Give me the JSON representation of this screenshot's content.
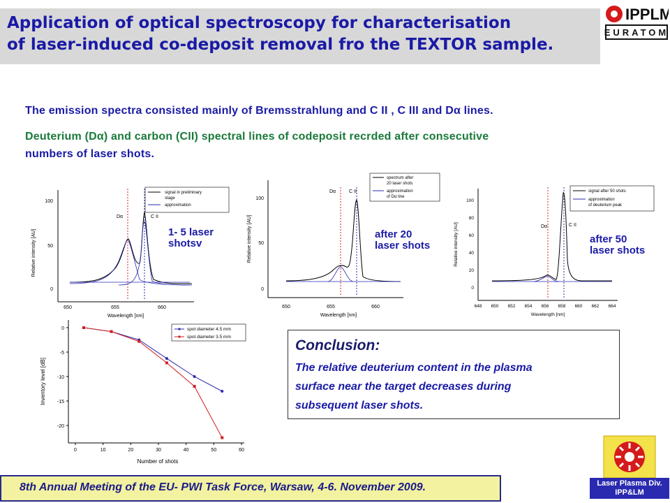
{
  "title": {
    "line1": "Application of optical spectroscopy for characterisation",
    "line2": "of laser-induced co-deposit removal fro the TEXTOR sample."
  },
  "logo": {
    "name": "IPPLM",
    "subtitle": "EURATOM"
  },
  "intro": {
    "line1": "The emission spectra consisted mainly of Bremsstrahlung and C II , C III  and  Dα lines.",
    "line2": "Deuterium (Dα)  and carbon (CII) spectral lines of codeposit recrded after consecutive",
    "line3": "numbers of laser shots."
  },
  "spectra": [
    {
      "id": "s1",
      "annotation": [
        "1- 5 laser",
        "shotsv"
      ],
      "xlabel": "Wavelength [nm]",
      "ylabel": "Relative intensity [AU]",
      "xticks": [
        "650",
        "655",
        "660"
      ],
      "yticks": [
        "0",
        "50",
        "100"
      ],
      "line_labels": [
        "Dα",
        "C II"
      ],
      "legend": [
        [
          "signal in preliminary",
          "stage"
        ],
        [
          "approximation"
        ]
      ]
    },
    {
      "id": "s2",
      "annotation": [
        "after 20",
        "laser shots"
      ],
      "xlabel": "Wavelength [nm]",
      "ylabel": "Relative intensity [AU]",
      "xticks": [
        "650",
        "655",
        "660"
      ],
      "yticks": [
        "0",
        "50",
        "100"
      ],
      "line_labels": [
        "Dα",
        "C II"
      ],
      "legend": [
        [
          "spectrum after",
          "20 laser shots"
        ],
        [
          "approximation",
          "of Dα line"
        ]
      ]
    },
    {
      "id": "s3",
      "annotation": [
        "after 50",
        "laser shots"
      ],
      "xlabel": "Wavelength [nm]",
      "ylabel": "Relative intensity [AU]",
      "xticks": [
        "648",
        "650",
        "652",
        "654",
        "656",
        "658",
        "660",
        "662",
        "664"
      ],
      "yticks": [
        "0",
        "20",
        "40",
        "60",
        "80",
        "100"
      ],
      "line_labels": [
        "Dα",
        "C II"
      ],
      "legend": [
        [
          "signal after 50 shots"
        ],
        [
          "approximation",
          "of deuterium peak"
        ]
      ]
    }
  ],
  "chart_data": {
    "type": "line",
    "xlabel": "Number of shots",
    "ylabel": "Inventory level [dB]",
    "xlim": [
      0,
      60
    ],
    "ylim": [
      -23,
      1
    ],
    "xticks": [
      0,
      10,
      20,
      30,
      40,
      50,
      60
    ],
    "yticks": [
      0,
      -5,
      -10,
      -15,
      -20
    ],
    "grid": false,
    "legend_position": "top-right",
    "series": [
      {
        "name": "spot diameter 4.5 mm",
        "color": "#2a2ab0",
        "marker": "circle",
        "x": [
          3,
          13,
          23,
          33,
          43,
          53
        ],
        "y": [
          0,
          -0.8,
          -2.5,
          -6.3,
          -10,
          -13
        ]
      },
      {
        "name": "spot diameter 3.5 mm",
        "color": "#d02020",
        "marker": "square",
        "x": [
          3,
          13,
          23,
          33,
          43,
          53
        ],
        "y": [
          0,
          -0.8,
          -2.8,
          -7.2,
          -12,
          -22.5
        ]
      }
    ]
  },
  "conclusion": {
    "heading": "Conclusion:",
    "line1": "The relative deuterium content in the plasma",
    "line2": "surface near the target decreases during",
    "line3": "subsequent laser shots."
  },
  "footer": {
    "text": "8th Annual Meeting of the EU- PWI Task Force, Warsaw, 4-6. November 2009."
  },
  "lab_logo": {
    "line1": "Laser Plasma Div.",
    "line2": "IPP&LM"
  },
  "colors": {
    "title": "#1a1aa6",
    "green": "#1a7a3a",
    "red": "#d02020",
    "blue": "#2a2ab0"
  }
}
